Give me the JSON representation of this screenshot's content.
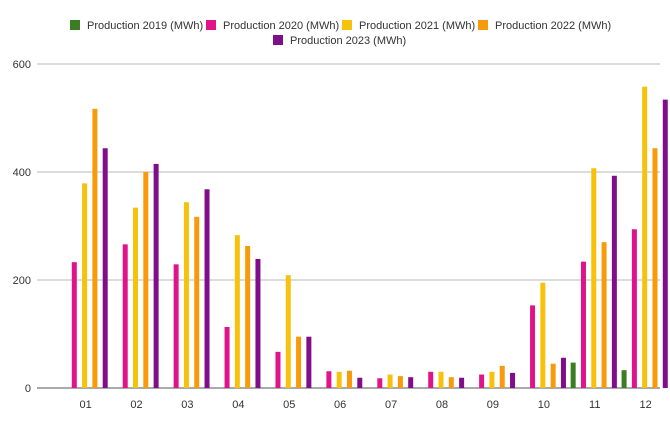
{
  "chart_data": {
    "type": "bar",
    "categories": [
      "01",
      "02",
      "03",
      "04",
      "05",
      "06",
      "07",
      "08",
      "09",
      "10",
      "11",
      "12"
    ],
    "series": [
      {
        "name": "Production 2019 (MWh)",
        "color": "#3a7d22",
        "values": [
          null,
          null,
          null,
          null,
          null,
          null,
          null,
          null,
          null,
          null,
          47,
          33
        ]
      },
      {
        "name": "Production 2020 (MWh)",
        "color": "#e0148a",
        "values": [
          233,
          266,
          229,
          113,
          67,
          31,
          18,
          30,
          25,
          153,
          234,
          294
        ]
      },
      {
        "name": "Production 2021 (MWh)",
        "color": "#f7c20b",
        "values": [
          379,
          334,
          344,
          283,
          209,
          30,
          25,
          30,
          30,
          195,
          407,
          558
        ]
      },
      {
        "name": "Production 2022 (MWh)",
        "color": "#f79a0b",
        "values": [
          517,
          400,
          317,
          263,
          95,
          32,
          22,
          20,
          41,
          45,
          270,
          444
        ]
      },
      {
        "name": "Production 2023 (MWh)",
        "color": "#800e8a",
        "values": [
          444,
          415,
          368,
          239,
          95,
          19,
          20,
          19,
          28,
          56,
          393,
          534
        ]
      }
    ],
    "ylim": [
      0,
      600
    ],
    "yticks": [
      0,
      200,
      400,
      600
    ],
    "grid": true,
    "legend_position": "top"
  }
}
